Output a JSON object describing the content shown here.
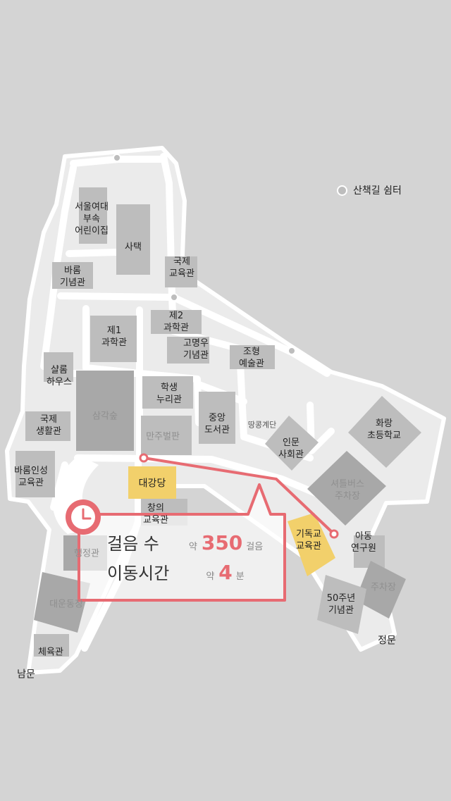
{
  "legend": {
    "rest_area": "산책길 쉼터"
  },
  "buildings": {
    "child_center": "서울여대\n부속\n어린이집",
    "dorm": "사택",
    "barom_memorial": "바롬\n기념관",
    "intl_edu": "국제\n교육관",
    "sci2": "제2\n과학관",
    "sci1": "제1\n과학관",
    "gomyeongwoo": "고명우\n기념관",
    "art": "조형\n예술관",
    "shalom": "샬롬\n하우스",
    "student": "학생\n누리관",
    "forest": "삼각숲",
    "library": "중앙\n도서관",
    "stairs": "땅콩계단",
    "humanities": "인문\n사회관",
    "hwarang": "화랑\n초등학교",
    "intl_life": "국제\n생활관",
    "manju": "만주벌판",
    "barom_edu": "바롬인성\n교육관",
    "auditorium": "대강당",
    "creative": "창의\n교육관",
    "shuttle": "셔틀버스\n주차장",
    "admin": "행정관",
    "christian": "기독교\n교육관",
    "child_research": "아동\n연구원",
    "parking": "주차장",
    "50th": "50주년\n기념관",
    "daeun": "대운동장",
    "gym": "체육관",
    "south_gate": "남문",
    "main_gate": "정문"
  },
  "info": {
    "steps_label": "걸음 수",
    "steps_prefix": "약",
    "steps_value": "350",
    "steps_unit": "걸음",
    "time_label": "이동시간",
    "time_prefix": "약",
    "time_value": "4",
    "time_unit": "분"
  },
  "colors": {
    "route": "#e76b72",
    "highlight": "#f2d06b",
    "building": "#bdbdbd",
    "path": "#ffffff",
    "background": "#d4d4d4"
  }
}
